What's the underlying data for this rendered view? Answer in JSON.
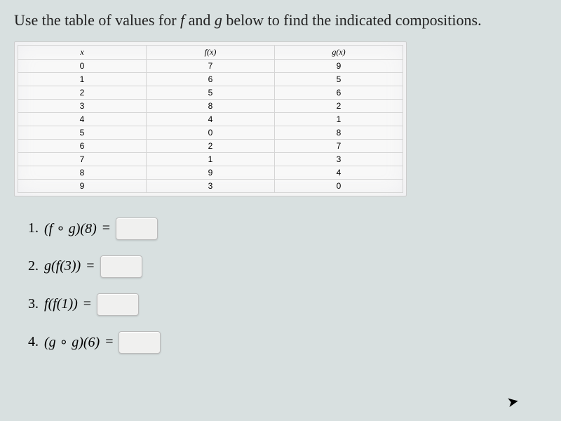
{
  "prompt_part1": "Use the table of values for ",
  "prompt_f": "f",
  "prompt_and": " and ",
  "prompt_g": "g",
  "prompt_part2": " below to find the indicated compositions.",
  "table": {
    "headers": [
      "x",
      "f(x)",
      "g(x)"
    ],
    "rows": [
      [
        "0",
        "7",
        "9"
      ],
      [
        "1",
        "6",
        "5"
      ],
      [
        "2",
        "5",
        "6"
      ],
      [
        "3",
        "8",
        "2"
      ],
      [
        "4",
        "4",
        "1"
      ],
      [
        "5",
        "0",
        "8"
      ],
      [
        "6",
        "2",
        "7"
      ],
      [
        "7",
        "1",
        "3"
      ],
      [
        "8",
        "9",
        "4"
      ],
      [
        "9",
        "3",
        "0"
      ]
    ]
  },
  "questions": [
    {
      "num": "1.",
      "expr": "(f ∘ g)(8)"
    },
    {
      "num": "2.",
      "expr": "g(f(3))"
    },
    {
      "num": "3.",
      "expr": "f(f(1))"
    },
    {
      "num": "4.",
      "expr": "(g ∘ g)(6)"
    }
  ]
}
